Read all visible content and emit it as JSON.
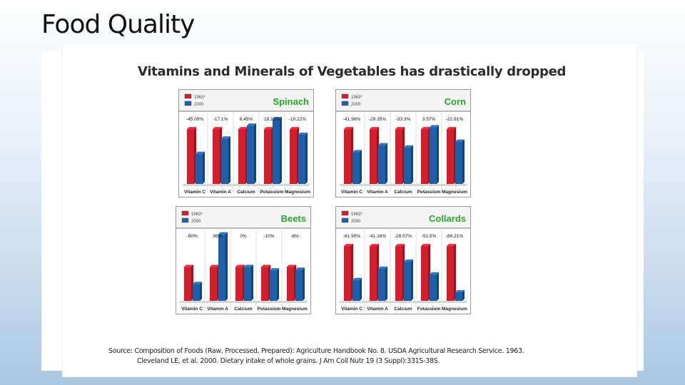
{
  "slide_title": "Food Quality",
  "panel_heading": "Vitamins and Minerals of Vegetables has drastically dropped",
  "source_line_1": "Source: Composition of Foods (Raw, Processed, Prepared): Agriculture Handbook No. 8. USDA Agricultural Research Service. 1963.",
  "source_line_2": "Cleveland LE, et al. 2000. Dietary intake of whole grains. J Am Coll Nutr 19 (3 Suppl):331S-38S.",
  "colors": {
    "series_1963": "#d21f2e",
    "series_2000": "#1f5fa8",
    "title_green": "#2aa52a"
  },
  "chart_data": [
    {
      "type": "bar",
      "title": "Spinach",
      "categories": [
        "Vitamin C",
        "Vitamin A",
        "Calcium",
        "Potassium",
        "Magnesium"
      ],
      "series": [
        {
          "name": "1963*",
          "values": [
            100,
            100,
            100,
            100,
            100
          ]
        },
        {
          "name": "2000",
          "values": [
            54.91,
            82.9,
            106.45,
            118.22,
            89.78
          ]
        }
      ],
      "data_labels": [
        "-45.09%",
        "-17.1%",
        "6.45%",
        "18.22%",
        "-10.22%"
      ],
      "ylim": [
        0,
        130
      ],
      "legend": "top-left"
    },
    {
      "type": "bar",
      "title": "Corn",
      "categories": [
        "Vitamin C",
        "Vitamin A",
        "Calcium",
        "Potassium",
        "Magnesium"
      ],
      "series": [
        {
          "name": "1963*",
          "values": [
            100,
            100,
            100,
            100,
            100
          ]
        },
        {
          "name": "2000",
          "values": [
            58.04,
            70.65,
            66.7,
            103.57,
            77.19
          ]
        }
      ],
      "data_labels": [
        "-41.96%",
        "-29.35%",
        "-33.3%",
        "3.57%",
        "-22.81%"
      ],
      "ylim": [
        0,
        130
      ],
      "legend": "top-left"
    },
    {
      "type": "bar",
      "title": "Beets",
      "categories": [
        "Vitamin C",
        "Vitamin A",
        "Calcium",
        "Potassium",
        "Magnesium"
      ],
      "series": [
        {
          "name": "1963*",
          "values": [
            100,
            100,
            100,
            100,
            100
          ]
        },
        {
          "name": "2000",
          "values": [
            50,
            196,
            100,
            90,
            92
          ]
        }
      ],
      "data_labels": [
        "-50%",
        "96%",
        "0%",
        "-10%",
        "-8%"
      ],
      "ylim": [
        0,
        210
      ],
      "legend": "top-left"
    },
    {
      "type": "bar",
      "title": "Collards",
      "categories": [
        "Vitamin C",
        "Vitamin A",
        "Calcium",
        "Fotassium",
        "Magnesium"
      ],
      "series": [
        {
          "name": "1963*",
          "values": [
            100,
            100,
            100,
            100,
            100
          ]
        },
        {
          "name": "2000",
          "values": [
            38.05,
            58.84,
            71.43,
            48.5,
            15.79
          ]
        }
      ],
      "data_labels": [
        "-61.95%",
        "-41.16%",
        "-28.57%",
        "-51.5%",
        "-84.21%"
      ],
      "ylim": [
        0,
        130
      ],
      "legend": "top-left"
    }
  ]
}
